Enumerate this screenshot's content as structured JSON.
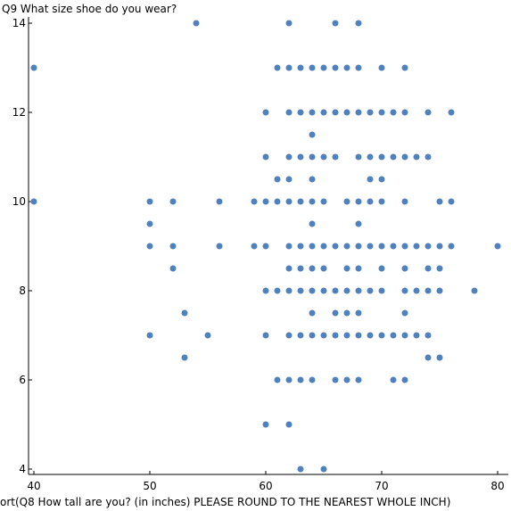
{
  "chart_data": {
    "type": "scatter",
    "title": "",
    "ylabel": "Q9 What size shoe do you wear?",
    "xlabel": "ort(Q8 How tall are you? (in inches) PLEASE ROUND TO THE NEAREST WHOLE INCH)",
    "xlim": [
      39.5,
      80.5
    ],
    "ylim": [
      3.95,
      14.05
    ],
    "xticks": [
      40,
      50,
      60,
      70,
      80
    ],
    "yticks": [
      4,
      6,
      8,
      10,
      12,
      14
    ],
    "xtick_labels": [
      "40",
      "50",
      "60",
      "70",
      "80"
    ],
    "ytick_labels": [
      "4",
      "6",
      "8",
      "10",
      "12",
      "14"
    ],
    "grid": false,
    "marker_color": "#4f81bd",
    "points": [
      [
        54,
        14
      ],
      [
        62,
        14
      ],
      [
        66,
        14
      ],
      [
        68,
        14
      ],
      [
        40,
        13
      ],
      [
        61,
        13
      ],
      [
        62,
        13
      ],
      [
        63,
        13
      ],
      [
        64,
        13
      ],
      [
        65,
        13
      ],
      [
        66,
        13
      ],
      [
        67,
        13
      ],
      [
        68,
        13
      ],
      [
        70,
        13
      ],
      [
        72,
        13
      ],
      [
        60,
        12
      ],
      [
        62,
        12
      ],
      [
        63,
        12
      ],
      [
        64,
        12
      ],
      [
        65,
        12
      ],
      [
        66,
        12
      ],
      [
        67,
        12
      ],
      [
        68,
        12
      ],
      [
        69,
        12
      ],
      [
        70,
        12
      ],
      [
        71,
        12
      ],
      [
        72,
        12
      ],
      [
        74,
        12
      ],
      [
        76,
        12
      ],
      [
        64,
        11.5
      ],
      [
        60,
        11
      ],
      [
        62,
        11
      ],
      [
        63,
        11
      ],
      [
        64,
        11
      ],
      [
        65,
        11
      ],
      [
        66,
        11
      ],
      [
        68,
        11
      ],
      [
        69,
        11
      ],
      [
        70,
        11
      ],
      [
        71,
        11
      ],
      [
        72,
        11
      ],
      [
        73,
        11
      ],
      [
        74,
        11
      ],
      [
        61,
        10.5
      ],
      [
        62,
        10.5
      ],
      [
        64,
        10.5
      ],
      [
        69,
        10.5
      ],
      [
        70,
        10.5
      ],
      [
        40,
        10
      ],
      [
        50,
        10
      ],
      [
        52,
        10
      ],
      [
        56,
        10
      ],
      [
        59,
        10
      ],
      [
        60,
        10
      ],
      [
        61,
        10
      ],
      [
        62,
        10
      ],
      [
        63,
        10
      ],
      [
        64,
        10
      ],
      [
        65,
        10
      ],
      [
        67,
        10
      ],
      [
        68,
        10
      ],
      [
        69,
        10
      ],
      [
        70,
        10
      ],
      [
        72,
        10
      ],
      [
        75,
        10
      ],
      [
        76,
        10
      ],
      [
        50,
        9.5
      ],
      [
        64,
        9.5
      ],
      [
        68,
        9.5
      ],
      [
        50,
        9
      ],
      [
        52,
        9
      ],
      [
        56,
        9
      ],
      [
        59,
        9
      ],
      [
        60,
        9
      ],
      [
        62,
        9
      ],
      [
        63,
        9
      ],
      [
        64,
        9
      ],
      [
        65,
        9
      ],
      [
        66,
        9
      ],
      [
        67,
        9
      ],
      [
        68,
        9
      ],
      [
        69,
        9
      ],
      [
        70,
        9
      ],
      [
        71,
        9
      ],
      [
        72,
        9
      ],
      [
        73,
        9
      ],
      [
        74,
        9
      ],
      [
        75,
        9
      ],
      [
        76,
        9
      ],
      [
        80,
        9
      ],
      [
        52,
        8.5
      ],
      [
        62,
        8.5
      ],
      [
        63,
        8.5
      ],
      [
        64,
        8.5
      ],
      [
        65,
        8.5
      ],
      [
        67,
        8.5
      ],
      [
        68,
        8.5
      ],
      [
        70,
        8.5
      ],
      [
        72,
        8.5
      ],
      [
        74,
        8.5
      ],
      [
        75,
        8.5
      ],
      [
        60,
        8
      ],
      [
        61,
        8
      ],
      [
        62,
        8
      ],
      [
        63,
        8
      ],
      [
        64,
        8
      ],
      [
        65,
        8
      ],
      [
        66,
        8
      ],
      [
        67,
        8
      ],
      [
        68,
        8
      ],
      [
        69,
        8
      ],
      [
        70,
        8
      ],
      [
        72,
        8
      ],
      [
        73,
        8
      ],
      [
        74,
        8
      ],
      [
        75,
        8
      ],
      [
        78,
        8
      ],
      [
        53,
        7.5
      ],
      [
        64,
        7.5
      ],
      [
        66,
        7.5
      ],
      [
        67,
        7.5
      ],
      [
        68,
        7.5
      ],
      [
        72,
        7.5
      ],
      [
        50,
        7
      ],
      [
        55,
        7
      ],
      [
        60,
        7
      ],
      [
        62,
        7
      ],
      [
        63,
        7
      ],
      [
        64,
        7
      ],
      [
        65,
        7
      ],
      [
        66,
        7
      ],
      [
        67,
        7
      ],
      [
        68,
        7
      ],
      [
        69,
        7
      ],
      [
        70,
        7
      ],
      [
        71,
        7
      ],
      [
        72,
        7
      ],
      [
        73,
        7
      ],
      [
        74,
        7
      ],
      [
        53,
        6.5
      ],
      [
        74,
        6.5
      ],
      [
        75,
        6.5
      ],
      [
        61,
        6
      ],
      [
        62,
        6
      ],
      [
        63,
        6
      ],
      [
        64,
        6
      ],
      [
        66,
        6
      ],
      [
        67,
        6
      ],
      [
        68,
        6
      ],
      [
        71,
        6
      ],
      [
        72,
        6
      ],
      [
        60,
        5
      ],
      [
        62,
        5
      ],
      [
        63,
        4
      ],
      [
        65,
        4
      ]
    ]
  }
}
